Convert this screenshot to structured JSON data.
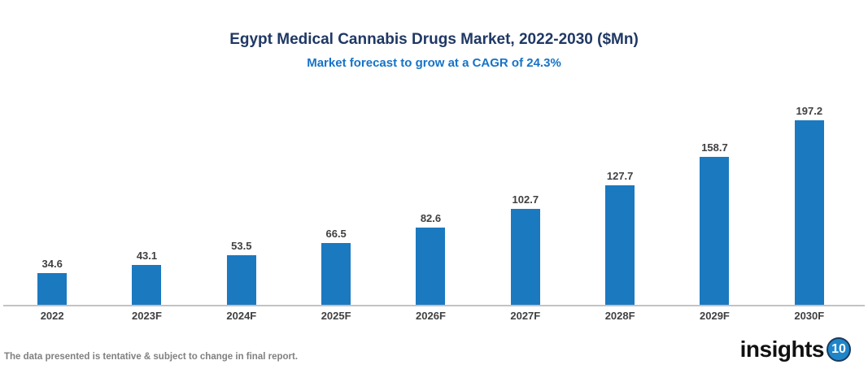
{
  "header": {
    "title": "Egypt Medical Cannabis Drugs Market, 2022-2030 ($Mn)",
    "subtitle": "Market forecast to grow at a CAGR of 24.3%"
  },
  "chart_data": {
    "type": "bar",
    "categories": [
      "2022",
      "2023F",
      "2024F",
      "2025F",
      "2026F",
      "2027F",
      "2028F",
      "2029F",
      "2030F"
    ],
    "values": [
      34.6,
      43.1,
      53.5,
      66.5,
      82.6,
      102.7,
      127.7,
      158.7,
      197.2
    ],
    "title": "Egypt Medical Cannabis Drugs Market, 2022-2030 ($Mn)",
    "subtitle": "Market forecast to grow at a CAGR of 24.3%",
    "xlabel": "",
    "ylabel": "",
    "ylim": [
      0,
      210
    ],
    "grid": false,
    "legend": "none",
    "data_labels": true,
    "bar_color": "#1B79C0"
  },
  "footer": {
    "disclaimer": "The data presented is tentative & subject to change in final report.",
    "logo_text": "insights",
    "logo_badge": "10"
  },
  "colors": {
    "title": "#1F3864",
    "subtitle": "#1673C8",
    "bar": "#1B79C0",
    "axis_line": "#C3C3C3",
    "value_label": "#404040",
    "category_label": "#404040",
    "disclaimer": "#808080",
    "logo_badge_bg": "#1F85C9",
    "logo_badge_ring": "#1B3A5E"
  }
}
